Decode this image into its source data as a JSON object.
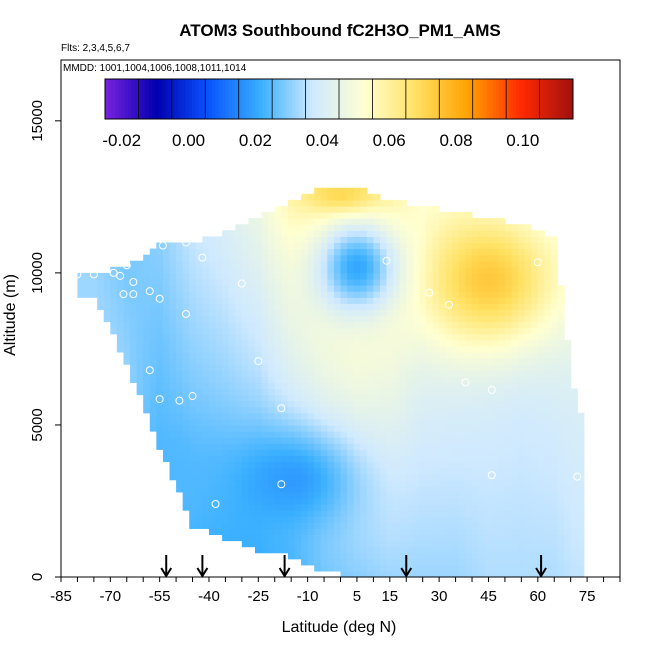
{
  "chart_data": {
    "type": "heatmap",
    "title": "ATOM3 Southbound fC2H3O_PM1_AMS",
    "flights_label": "Flts: 2,3,4,5,6,7",
    "dates_label": "MMDD: 1001,1004,1006,1008,1011,1014",
    "xlabel": "Latitude (deg N)",
    "ylabel": "Altitude (m)",
    "xlim": [
      -85,
      85
    ],
    "ylim": [
      0,
      17000
    ],
    "x_ticks": [
      -85,
      -70,
      -55,
      -40,
      -25,
      -10,
      5,
      15,
      30,
      45,
      60,
      75
    ],
    "y_ticks": [
      0,
      5000,
      10000,
      15000
    ],
    "colorbar": {
      "range": [
        -0.025,
        0.115
      ],
      "ticks": [
        -0.02,
        0.0,
        0.02,
        0.04,
        0.06,
        0.08,
        0.1
      ],
      "tick_labels": [
        "-0.02",
        "0.00",
        "0.02",
        "0.04",
        "0.06",
        "0.08",
        "0.10"
      ],
      "colors": [
        "#7a22e0",
        "#0000b0",
        "#0a55ff",
        "#3ab0ff",
        "#cfe9ff",
        "#ffffd0",
        "#ffe060",
        "#ffa000",
        "#ff2a00",
        "#a01010"
      ]
    },
    "field": {
      "profiles": [
        {
          "lat": -75,
          "top": 9950,
          "bottom": 9300,
          "top_value": 0.032,
          "bottom_value": 0.032,
          "blob_value": 0.034
        },
        {
          "lat": -65,
          "top": 10200,
          "bottom": 7000,
          "top_value": 0.028,
          "bottom_value": 0.031,
          "blob_value": 0.028
        },
        {
          "lat": -55,
          "top": 10900,
          "bottom": 4300,
          "top_value": 0.03,
          "bottom_value": 0.024,
          "blob_value": 0.028
        },
        {
          "lat": -45,
          "top": 11000,
          "bottom": 1700,
          "top_value": 0.036,
          "bottom_value": 0.022,
          "blob_value": 0.032
        },
        {
          "lat": -35,
          "top": 11300,
          "bottom": 1300,
          "top_value": 0.04,
          "bottom_value": 0.022,
          "blob_value": 0.036
        },
        {
          "lat": -25,
          "top": 11800,
          "bottom": 900,
          "top_value": 0.046,
          "bottom_value": 0.022,
          "blob_value": 0.032
        },
        {
          "lat": -15,
          "top": 12400,
          "bottom": 700,
          "top_value": 0.058,
          "bottom_value": 0.024,
          "blob_value": 0.02
        },
        {
          "lat": -5,
          "top": 12800,
          "bottom": 200,
          "top_value": 0.064,
          "bottom_value": 0.028,
          "blob_value": 0.02
        },
        {
          "lat": 5,
          "top": 12800,
          "bottom": 0,
          "top_value": 0.066,
          "bottom_value": 0.03,
          "blob_value": 0.028
        },
        {
          "lat": 15,
          "top": 12400,
          "bottom": 0,
          "top_value": 0.06,
          "bottom_value": 0.032,
          "blob_value": 0.044
        },
        {
          "lat": 25,
          "top": 12200,
          "bottom": 0,
          "top_value": 0.05,
          "bottom_value": 0.032,
          "blob_value": 0.07
        },
        {
          "lat": 35,
          "top": 12000,
          "bottom": 0,
          "top_value": 0.048,
          "bottom_value": 0.032,
          "blob_value": 0.074
        },
        {
          "lat": 45,
          "top": 11800,
          "bottom": 0,
          "top_value": 0.044,
          "bottom_value": 0.034,
          "blob_value": 0.072
        },
        {
          "lat": 55,
          "top": 11600,
          "bottom": 0,
          "top_value": 0.042,
          "bottom_value": 0.034,
          "blob_value": 0.068
        },
        {
          "lat": 65,
          "top": 11200,
          "bottom": 0,
          "top_value": 0.044,
          "bottom_value": 0.034,
          "blob_value": 0.056
        },
        {
          "lat": 72,
          "top": 5400,
          "bottom": 0,
          "top_value": 0.04,
          "bottom_value": 0.036,
          "blob_value": 0.04
        }
      ],
      "blobs": [
        {
          "lat": 45,
          "alt": 9800,
          "lat_width": 22,
          "alt_width": 2300,
          "value": 0.074
        },
        {
          "lat": 5,
          "alt": 10200,
          "lat_width": 13,
          "alt_width": 1600,
          "value": 0.02
        },
        {
          "lat": -15,
          "alt": 3200,
          "lat_width": 20,
          "alt_width": 1700,
          "value": 0.018
        },
        {
          "lat": -50,
          "alt": 2800,
          "lat_width": 12,
          "alt_width": 1800,
          "value": 0.024
        },
        {
          "lat": 0,
          "alt": 12600,
          "lat_width": 10,
          "alt_width": 500,
          "value": 0.07
        }
      ]
    },
    "sample_points": [
      {
        "lat": -80,
        "alt": 9950
      },
      {
        "lat": -75,
        "alt": 9950
      },
      {
        "lat": -69,
        "alt": 10000
      },
      {
        "lat": -67,
        "alt": 9900
      },
      {
        "lat": -65,
        "alt": 10250
      },
      {
        "lat": -63,
        "alt": 9700
      },
      {
        "lat": -66,
        "alt": 9300
      },
      {
        "lat": -63,
        "alt": 9300
      },
      {
        "lat": -58,
        "alt": 9400
      },
      {
        "lat": -55,
        "alt": 9150
      },
      {
        "lat": -54,
        "alt": 10900
      },
      {
        "lat": -47,
        "alt": 11000
      },
      {
        "lat": -42,
        "alt": 10500
      },
      {
        "lat": -30,
        "alt": 9650
      },
      {
        "lat": -47,
        "alt": 8650
      },
      {
        "lat": -25,
        "alt": 7100
      },
      {
        "lat": -58,
        "alt": 6800
      },
      {
        "lat": -55,
        "alt": 5850
      },
      {
        "lat": -49,
        "alt": 5800
      },
      {
        "lat": -45,
        "alt": 5950
      },
      {
        "lat": -18,
        "alt": 5550
      },
      {
        "lat": -18,
        "alt": 3050
      },
      {
        "lat": -55,
        "alt": 2800
      },
      {
        "lat": -48,
        "alt": 2000
      },
      {
        "lat": -38,
        "alt": 2400
      },
      {
        "lat": -13,
        "alt": 12600
      },
      {
        "lat": 14,
        "alt": 10400
      },
      {
        "lat": 27,
        "alt": 9350
      },
      {
        "lat": 33,
        "alt": 8950
      },
      {
        "lat": 60,
        "alt": 10350
      },
      {
        "lat": 68,
        "alt": 11850
      },
      {
        "lat": 38,
        "alt": 6400
      },
      {
        "lat": 46,
        "alt": 6150
      },
      {
        "lat": 46,
        "alt": 3350
      },
      {
        "lat": 72,
        "alt": 3300
      },
      {
        "lat": -10,
        "alt": 200
      }
    ],
    "arrow_latitudes": [
      -53,
      -42,
      -17,
      20,
      61
    ]
  }
}
